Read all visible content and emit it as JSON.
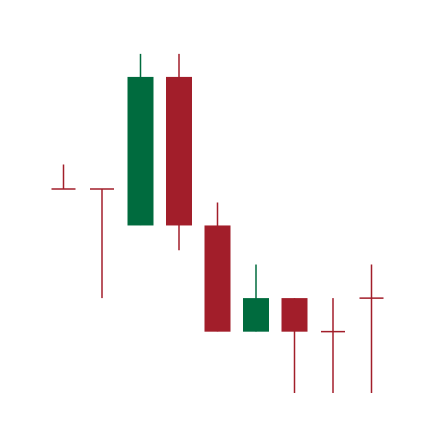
{
  "chart_data": {
    "type": "candlestick",
    "title": "",
    "xlabel": "",
    "ylabel": "",
    "show_axes": false,
    "grid": false,
    "colors": {
      "bullish": "#006B3E",
      "bearish": "#A21E2A",
      "background": "#FFFFFF"
    },
    "ylim": [
      0,
      100
    ],
    "candles": [
      {
        "open": 55.9,
        "high": 62.6,
        "low": 55.9,
        "close": 55.9
      },
      {
        "open": 55.9,
        "high": 55.9,
        "low": 26.0,
        "close": 55.9
      },
      {
        "open": 45.9,
        "high": 92.9,
        "low": 45.9,
        "close": 86.6
      },
      {
        "open": 86.6,
        "high": 92.9,
        "low": 39.1,
        "close": 45.9
      },
      {
        "open": 45.9,
        "high": 52.2,
        "low": 16.8,
        "close": 16.8
      },
      {
        "open": 16.8,
        "high": 35.2,
        "low": 16.8,
        "close": 26.0
      },
      {
        "open": 26.0,
        "high": 26.0,
        "low": 0.0,
        "close": 16.8
      },
      {
        "open": 16.8,
        "high": 26.0,
        "low": 0.0,
        "close": 16.8
      },
      {
        "open": 26.0,
        "high": 35.2,
        "low": 0.0,
        "close": 26.0
      }
    ]
  }
}
